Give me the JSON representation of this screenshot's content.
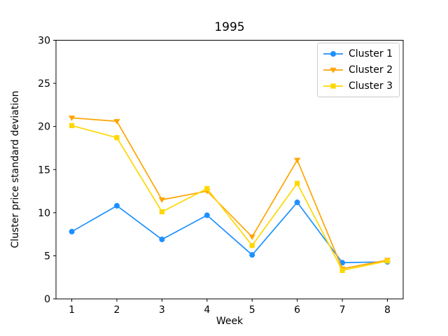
{
  "window": {
    "background": "#ffffff"
  },
  "chart_data": {
    "type": "line",
    "title": "1995",
    "xlabel": "Week",
    "ylabel": "Cluster price standard deviation",
    "x": [
      1,
      2,
      3,
      4,
      5,
      6,
      7,
      8
    ],
    "xticks": [
      "1",
      "2",
      "3",
      "4",
      "5",
      "6",
      "7",
      "8"
    ],
    "yticks": [
      "0",
      "5",
      "10",
      "15",
      "20",
      "25",
      "30"
    ],
    "ytick_values": [
      0,
      5,
      10,
      15,
      20,
      25,
      30
    ],
    "xlim": [
      0.65,
      8.35
    ],
    "ylim": [
      0,
      30
    ],
    "grid": false,
    "legend_position": "upper right",
    "series": [
      {
        "name": "Cluster 1",
        "color": "#1e90ff",
        "marker": "circle",
        "values": [
          7.8,
          10.8,
          6.9,
          9.7,
          5.1,
          11.2,
          4.2,
          4.3
        ]
      },
      {
        "name": "Cluster 2",
        "color": "#ffa500",
        "marker": "triangle-down",
        "values": [
          21.0,
          20.6,
          11.5,
          12.5,
          7.2,
          16.1,
          3.5,
          4.5
        ]
      },
      {
        "name": "Cluster 3",
        "color": "#ffd700",
        "marker": "square",
        "values": [
          20.1,
          18.7,
          10.1,
          12.8,
          6.2,
          13.4,
          3.3,
          4.4
        ]
      }
    ]
  }
}
